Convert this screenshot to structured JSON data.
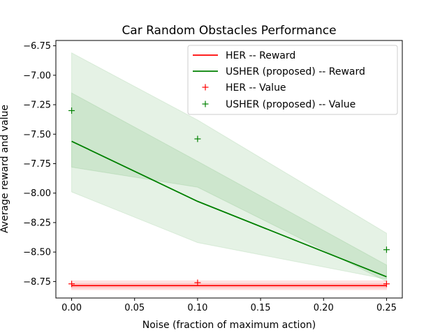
{
  "chart_data": {
    "type": "line",
    "title": "Car Random Obstacles Performance",
    "xlabel": "Noise (fraction of maximum action)",
    "ylabel": "Average reward and value",
    "xlim": [
      -0.0125,
      0.2625
    ],
    "ylim": [
      -8.89,
      -6.705
    ],
    "x_ticks": [
      0.0,
      0.05,
      0.1,
      0.15,
      0.2,
      0.25
    ],
    "x_tick_labels": [
      "0.00",
      "0.05",
      "0.10",
      "0.15",
      "0.20",
      "0.25"
    ],
    "y_ticks": [
      -6.75,
      -7.0,
      -7.25,
      -7.5,
      -7.75,
      -8.0,
      -8.25,
      -8.5,
      -8.75
    ],
    "y_tick_labels": [
      "−6.75",
      "−7.00",
      "−7.25",
      "−7.50",
      "−7.75",
      "−8.00",
      "−8.25",
      "−8.50",
      "−8.75"
    ],
    "grid": false,
    "legend_position": "top-right",
    "x": [
      0.0,
      0.1,
      0.25
    ],
    "series": [
      {
        "name": "HER -- Reward",
        "kind": "line",
        "color": "#ff0000",
        "values": [
          -8.785,
          -8.785,
          -8.785
        ],
        "band_inner": {
          "upper": [
            -8.765,
            -8.765,
            -8.765
          ],
          "lower": [
            -8.805,
            -8.805,
            -8.805
          ]
        },
        "band_outer": {
          "upper": [
            -8.745,
            -8.745,
            -8.745
          ],
          "lower": [
            -8.82,
            -8.82,
            -8.82
          ]
        }
      },
      {
        "name": "USHER (proposed) -- Reward",
        "kind": "line",
        "color": "#008000",
        "values": [
          -7.56,
          -8.07,
          -8.71
        ],
        "band_inner": {
          "upper": [
            -7.15,
            -7.73,
            -8.61
          ],
          "lower": [
            -7.78,
            -7.95,
            -8.75
          ]
        },
        "band_outer": {
          "upper": [
            -6.81,
            -7.38,
            -8.34
          ],
          "lower": [
            -7.99,
            -8.42,
            -8.73
          ]
        }
      },
      {
        "name": "HER -- Value",
        "kind": "marker",
        "marker": "+",
        "color": "#ff0000",
        "values": [
          -8.77,
          -8.76,
          -8.77
        ]
      },
      {
        "name": "USHER (proposed) -- Value",
        "kind": "marker",
        "marker": "+",
        "color": "#008000",
        "values": [
          -7.3,
          -7.54,
          -8.48
        ]
      }
    ]
  }
}
